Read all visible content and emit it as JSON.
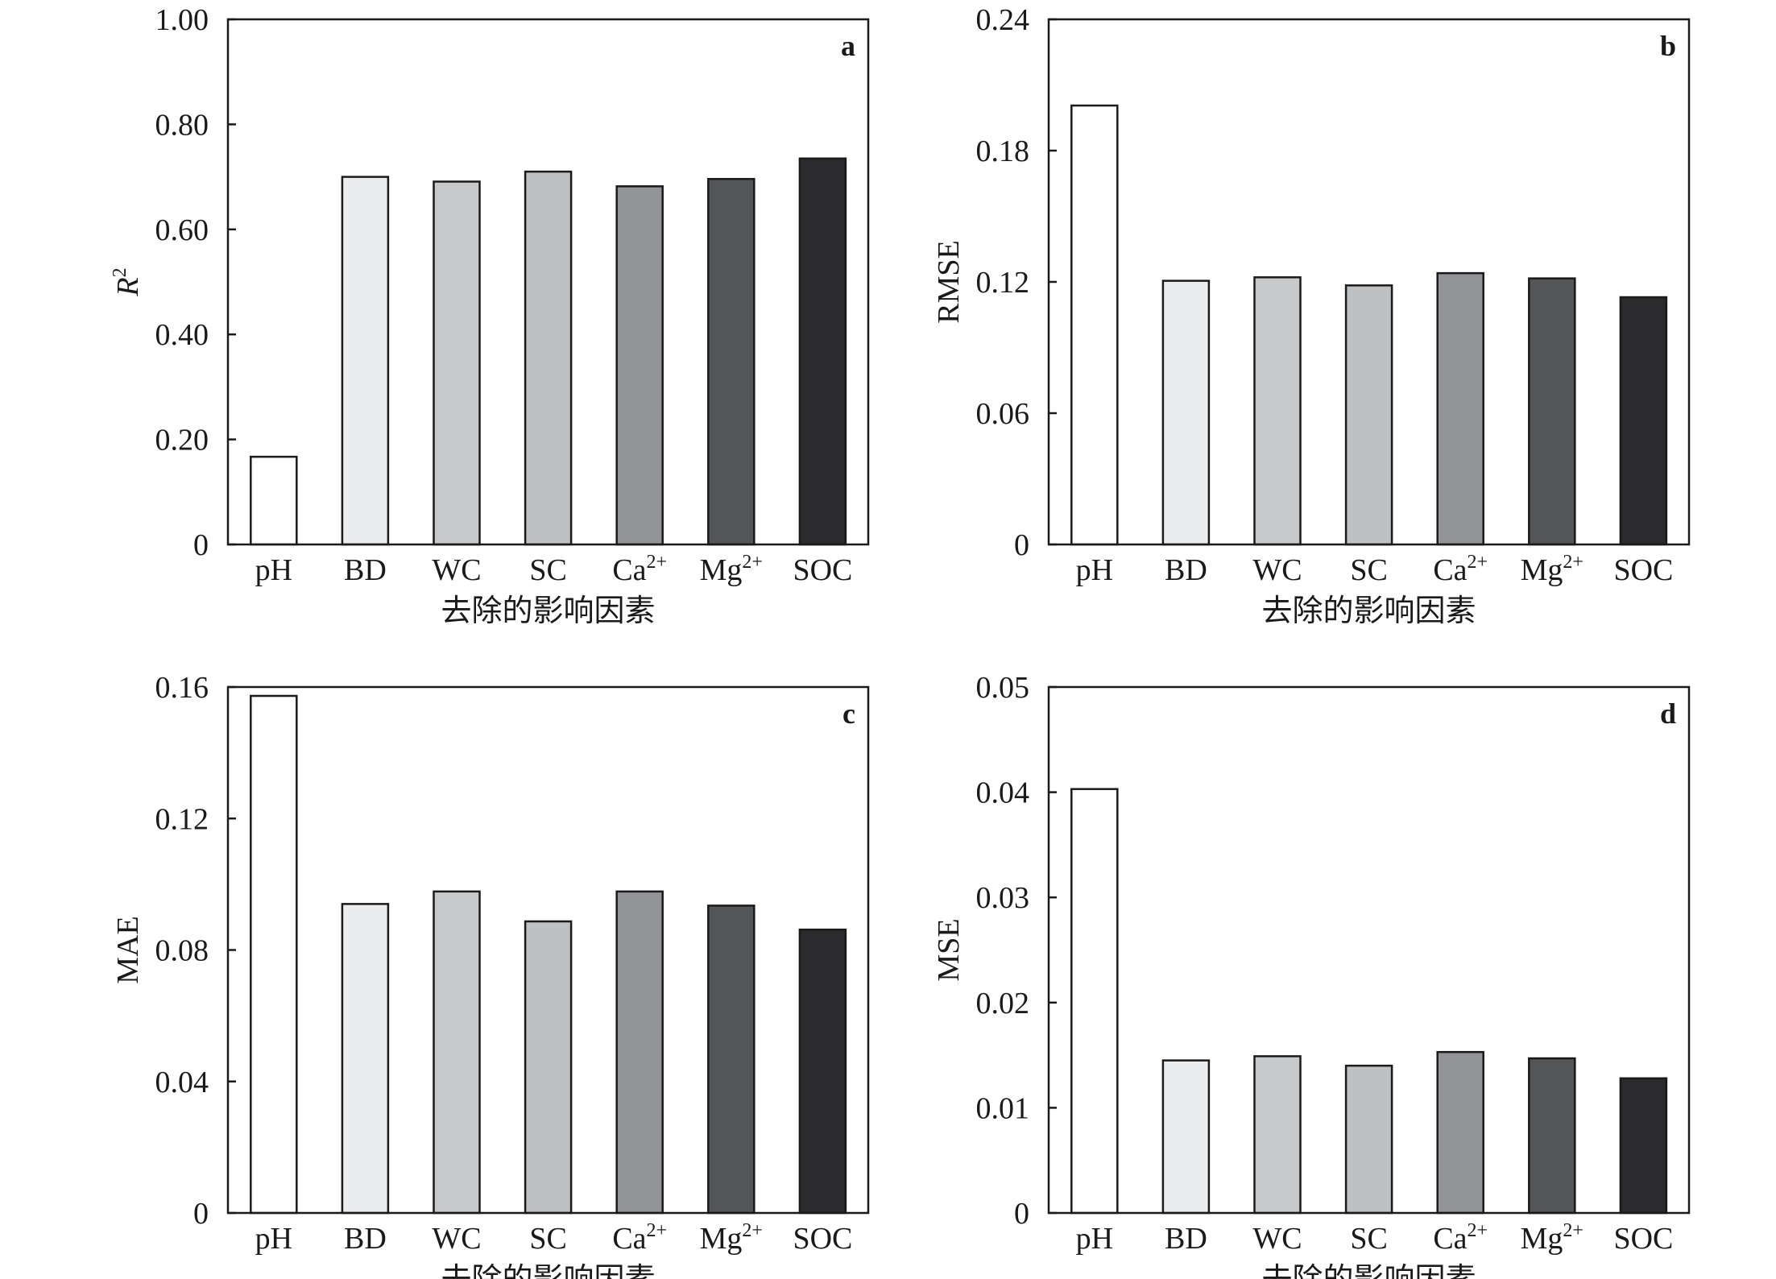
{
  "chart_data": [
    {
      "type": "bar",
      "panel": "a",
      "ylabel": "R",
      "ylabel_sup": "2",
      "ylabel_italic": true,
      "xlabel": "去除的影响因素",
      "categories": [
        {
          "base": "pH",
          "sup": ""
        },
        {
          "base": "BD",
          "sup": ""
        },
        {
          "base": "WC",
          "sup": ""
        },
        {
          "base": "SC",
          "sup": ""
        },
        {
          "base": "Ca",
          "sup": "2+"
        },
        {
          "base": "Mg",
          "sup": "2+"
        },
        {
          "base": "SOC",
          "sup": ""
        }
      ],
      "values": [
        0.167,
        0.7,
        0.691,
        0.71,
        0.682,
        0.696,
        0.735
      ],
      "ylim": [
        0,
        1.0
      ],
      "yticks": [
        "0",
        "0.20",
        "0.40",
        "0.60",
        "0.80",
        "1.00"
      ],
      "grid": false
    },
    {
      "type": "bar",
      "panel": "b",
      "ylabel": "RMSE",
      "ylabel_sup": "",
      "ylabel_italic": false,
      "xlabel": "去除的影响因素",
      "categories": [
        {
          "base": "pH",
          "sup": ""
        },
        {
          "base": "BD",
          "sup": ""
        },
        {
          "base": "WC",
          "sup": ""
        },
        {
          "base": "SC",
          "sup": ""
        },
        {
          "base": "Ca",
          "sup": "2+"
        },
        {
          "base": "Mg",
          "sup": "2+"
        },
        {
          "base": "SOC",
          "sup": ""
        }
      ],
      "values": [
        0.2006,
        0.1205,
        0.1221,
        0.1184,
        0.124,
        0.1216,
        0.113
      ],
      "ylim": [
        0,
        0.24
      ],
      "yticks": [
        "0",
        "0.06",
        "0.12",
        "0.18",
        "0.24"
      ],
      "grid": false
    },
    {
      "type": "bar",
      "panel": "c",
      "ylabel": "MAE",
      "ylabel_sup": "",
      "ylabel_italic": false,
      "xlabel": "去除的影响因素",
      "categories": [
        {
          "base": "pH",
          "sup": ""
        },
        {
          "base": "BD",
          "sup": ""
        },
        {
          "base": "WC",
          "sup": ""
        },
        {
          "base": "SC",
          "sup": ""
        },
        {
          "base": "Ca",
          "sup": "2+"
        },
        {
          "base": "Mg",
          "sup": "2+"
        },
        {
          "base": "SOC",
          "sup": ""
        }
      ],
      "values": [
        0.1573,
        0.094,
        0.0978,
        0.0887,
        0.0978,
        0.0935,
        0.0862
      ],
      "ylim": [
        0,
        0.16
      ],
      "yticks": [
        "0",
        "0.04",
        "0.08",
        "0.12",
        "0.16"
      ],
      "grid": false
    },
    {
      "type": "bar",
      "panel": "d",
      "ylabel": "MSE",
      "ylabel_sup": "",
      "ylabel_italic": false,
      "xlabel": "去除的影响因素",
      "categories": [
        {
          "base": "pH",
          "sup": ""
        },
        {
          "base": "BD",
          "sup": ""
        },
        {
          "base": "WC",
          "sup": ""
        },
        {
          "base": "SC",
          "sup": ""
        },
        {
          "base": "Ca",
          "sup": "2+"
        },
        {
          "base": "Mg",
          "sup": "2+"
        },
        {
          "base": "SOC",
          "sup": ""
        }
      ],
      "values": [
        0.0403,
        0.0145,
        0.0149,
        0.014,
        0.0153,
        0.0147,
        0.0128
      ],
      "ylim": [
        0,
        0.05
      ],
      "yticks": [
        "0",
        "0.01",
        "0.02",
        "0.03",
        "0.04",
        "0.05"
      ],
      "grid": false
    }
  ],
  "bar_colors": [
    "#ffffff",
    "#ebecee",
    "#c8c9cb",
    "#bfc0c2",
    "#939497",
    "#545557",
    "#2b2a2c"
  ]
}
